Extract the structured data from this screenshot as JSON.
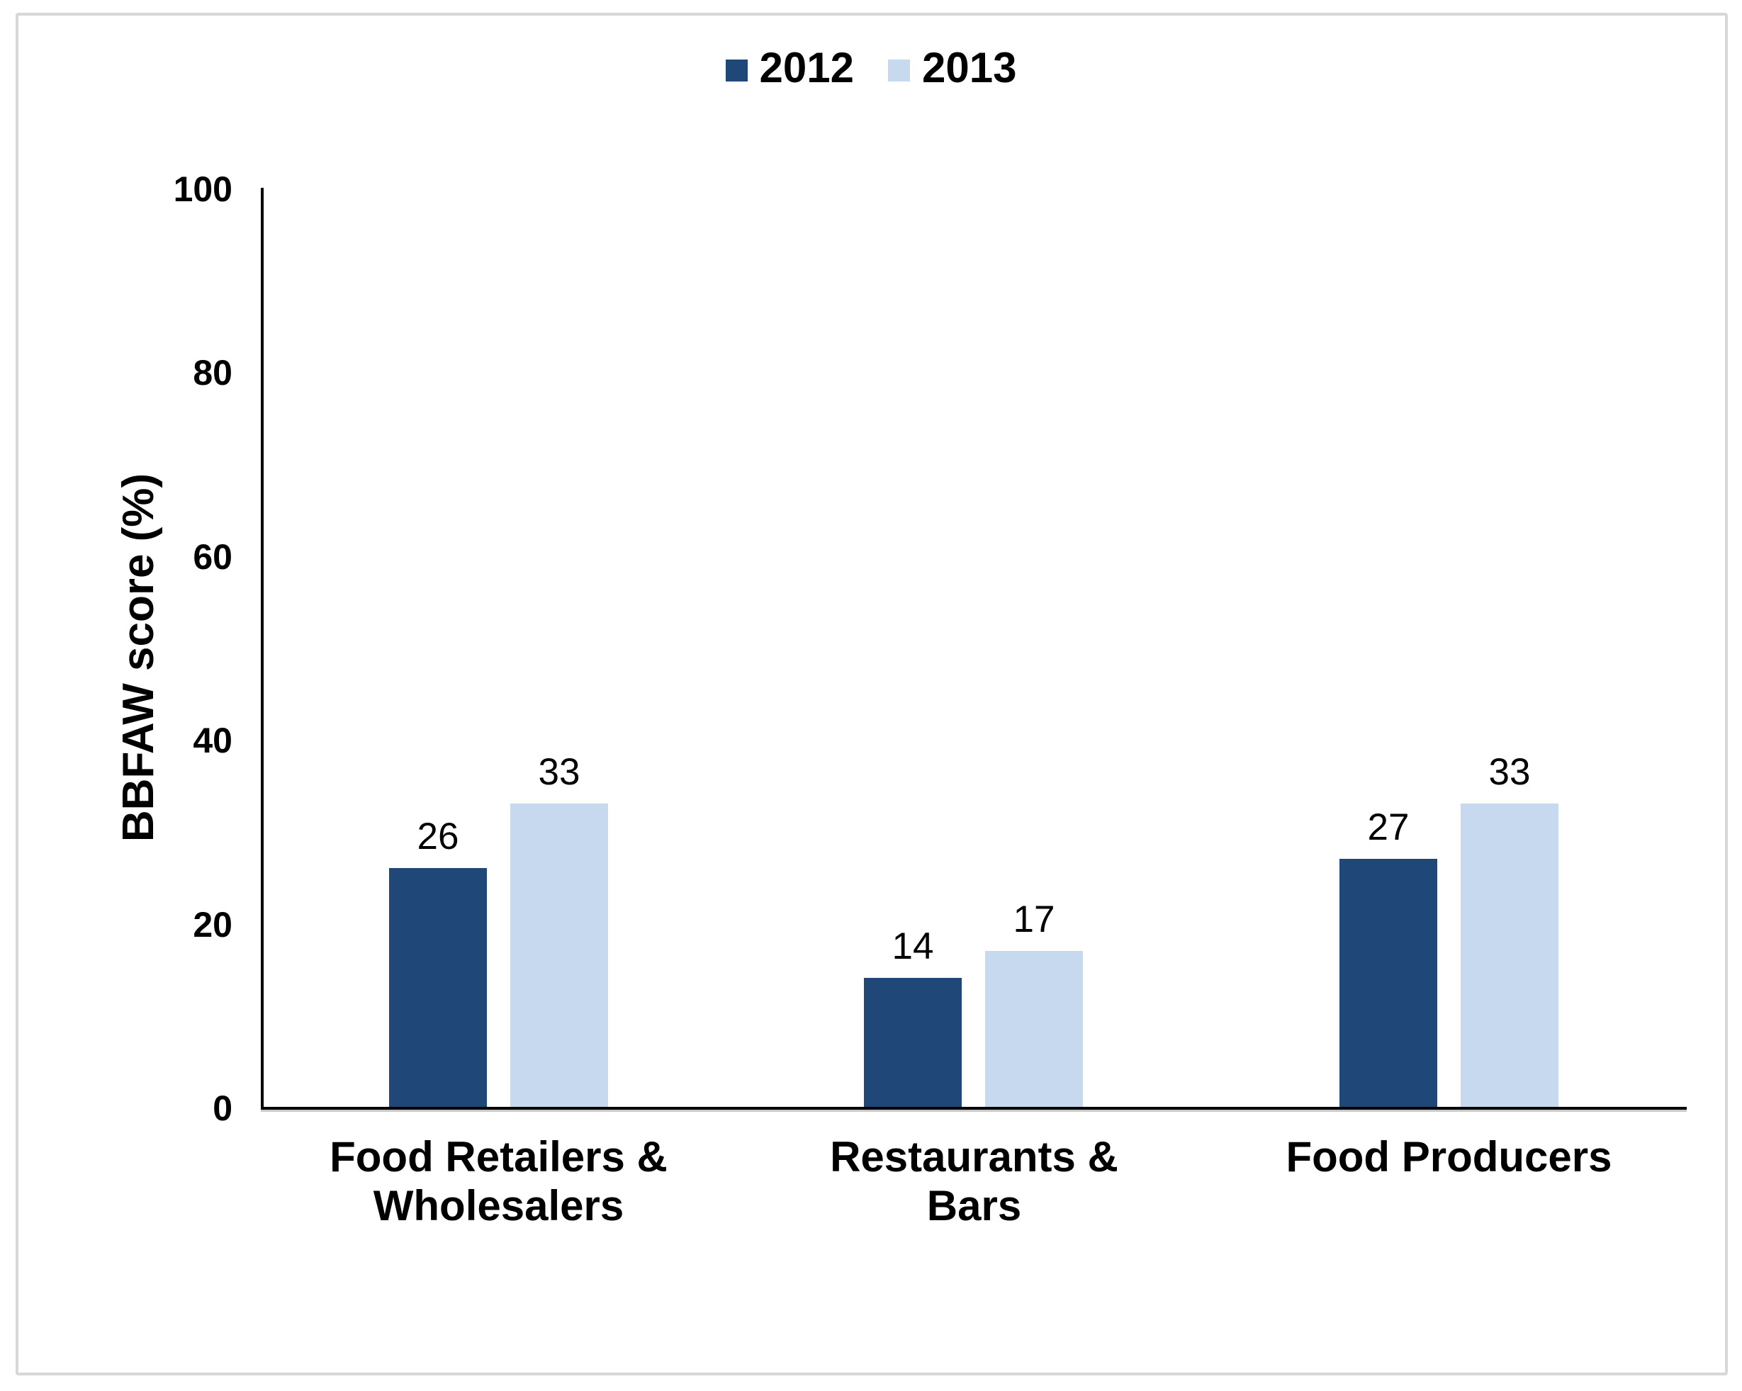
{
  "chart_data": {
    "type": "bar",
    "title": "",
    "categories": [
      "Food Retailers & Wholesalers",
      "Restaurants & Bars",
      "Food Producers"
    ],
    "series": [
      {
        "name": "2012",
        "color": "#1f4878",
        "values": [
          26,
          14,
          27
        ]
      },
      {
        "name": "2013",
        "color": "#c7d9ee",
        "values": [
          33,
          17,
          33
        ]
      }
    ],
    "data_labels_visible": true,
    "xlabel": "",
    "ylabel": "BBFAW score (%)",
    "ylim": [
      0,
      100
    ],
    "yticks": [
      0,
      20,
      40,
      60,
      80,
      100
    ],
    "grid": false,
    "legend_position": "top-center",
    "axis_color": "#000000",
    "frame_border_color": "#d7d7d7",
    "background_color": "#ffffff"
  }
}
